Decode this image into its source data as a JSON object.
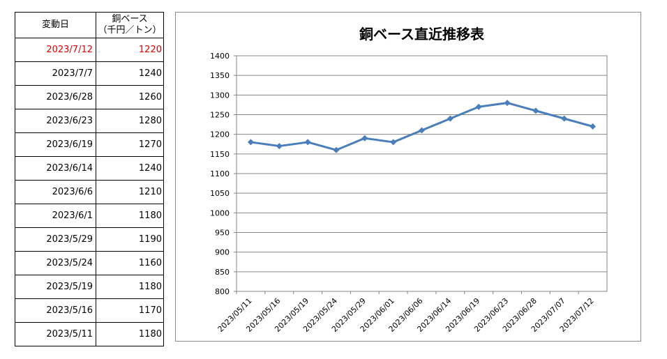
{
  "table": {
    "header_date": "変動日",
    "header_price_line1": "銅ベース",
    "header_price_line2": "（千円／トン）",
    "rows": [
      {
        "date": "2023/7/12",
        "price": "1220",
        "highlight": true
      },
      {
        "date": "2023/7/7",
        "price": "1240"
      },
      {
        "date": "2023/6/28",
        "price": "1260"
      },
      {
        "date": "2023/6/23",
        "price": "1280"
      },
      {
        "date": "2023/6/19",
        "price": "1270"
      },
      {
        "date": "2023/6/14",
        "price": "1240"
      },
      {
        "date": "2023/6/6",
        "price": "1210"
      },
      {
        "date": "2023/6/1",
        "price": "1180"
      },
      {
        "date": "2023/5/29",
        "price": "1190"
      },
      {
        "date": "2023/5/24",
        "price": "1160"
      },
      {
        "date": "2023/5/19",
        "price": "1180"
      },
      {
        "date": "2023/5/16",
        "price": "1170"
      },
      {
        "date": "2023/5/11",
        "price": "1180"
      }
    ],
    "highlight_color": "#e00000"
  },
  "chart_data": {
    "type": "line",
    "title": "銅ベース直近推移表",
    "xlabel": "",
    "ylabel": "",
    "categories": [
      "2023/05/11",
      "2023/05/16",
      "2023/05/19",
      "2023/05/24",
      "2023/05/29",
      "2023/06/01",
      "2023/06/06",
      "2023/06/14",
      "2023/06/19",
      "2023/06/23",
      "2023/06/28",
      "2023/07/07",
      "2023/07/12"
    ],
    "series": [
      {
        "values": [
          1180,
          1170,
          1180,
          1160,
          1190,
          1180,
          1210,
          1240,
          1270,
          1280,
          1260,
          1240,
          1220
        ],
        "color": "#4a7ebb",
        "marker": "diamond"
      }
    ],
    "ylim": [
      800,
      1400
    ],
    "yticks": [
      800,
      850,
      900,
      950,
      1000,
      1050,
      1100,
      1150,
      1200,
      1250,
      1300,
      1350,
      1400
    ],
    "grid": true,
    "legend": "none"
  }
}
